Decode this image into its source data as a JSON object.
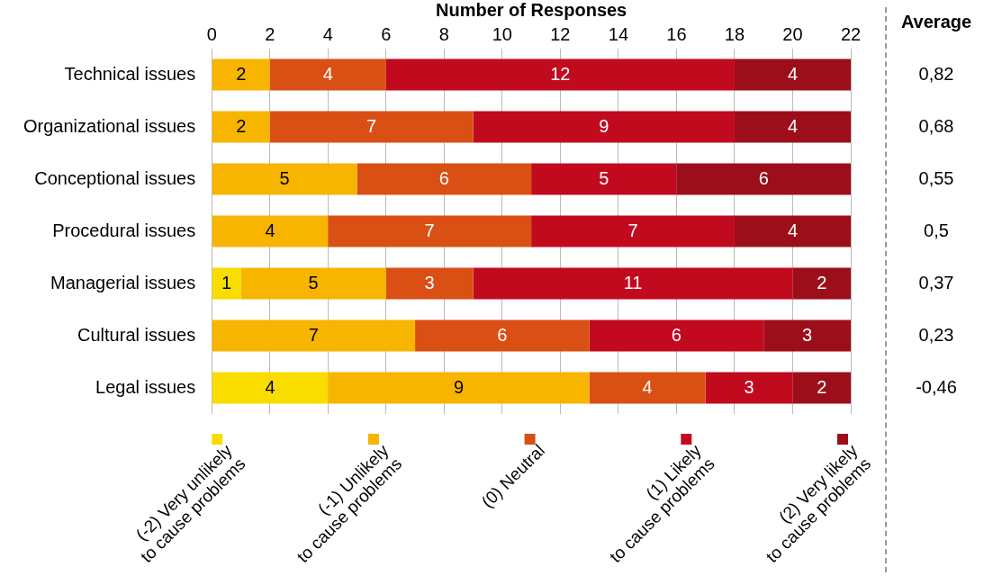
{
  "chart_data": {
    "type": "bar",
    "orientation": "horizontal",
    "stacked": true,
    "xlabel": "Number of Responses",
    "categories": [
      "Technical issues",
      "Organizational issues",
      "Conceptional issues",
      "Procedural issues",
      "Managerial issues",
      "Cultural issues",
      "Legal issues"
    ],
    "series": [
      {
        "name": "(-2) Very unlikely\nto cause problems",
        "color": "#f9dc00",
        "values": [
          null,
          null,
          null,
          null,
          1,
          null,
          4
        ]
      },
      {
        "name": "(-1) Unlikely\nto cause problems",
        "color": "#f7b500",
        "values": [
          2,
          2,
          5,
          4,
          5,
          7,
          9
        ]
      },
      {
        "name": "(0) Neutral",
        "color": "#d94f14",
        "values": [
          4,
          7,
          6,
          7,
          3,
          6,
          4
        ]
      },
      {
        "name": "(1) Likely\nto cause problems",
        "color": "#c20a1f",
        "values": [
          12,
          9,
          5,
          7,
          11,
          6,
          3
        ]
      },
      {
        "name": "(2) Very likely\nto cause problems",
        "color": "#9c0f1a",
        "values": [
          4,
          4,
          6,
          4,
          2,
          3,
          2
        ]
      }
    ],
    "xlim": [
      0,
      22
    ],
    "xticks": [
      0,
      2,
      4,
      6,
      8,
      10,
      12,
      14,
      16,
      18,
      20,
      22
    ],
    "grid": "x",
    "legend": "bottom",
    "data_labels": true,
    "annotations": [
      "Average",
      "0,82",
      "0,68",
      "0,55",
      "0,5",
      "0,37",
      "0,23",
      "-0,46"
    ]
  }
}
